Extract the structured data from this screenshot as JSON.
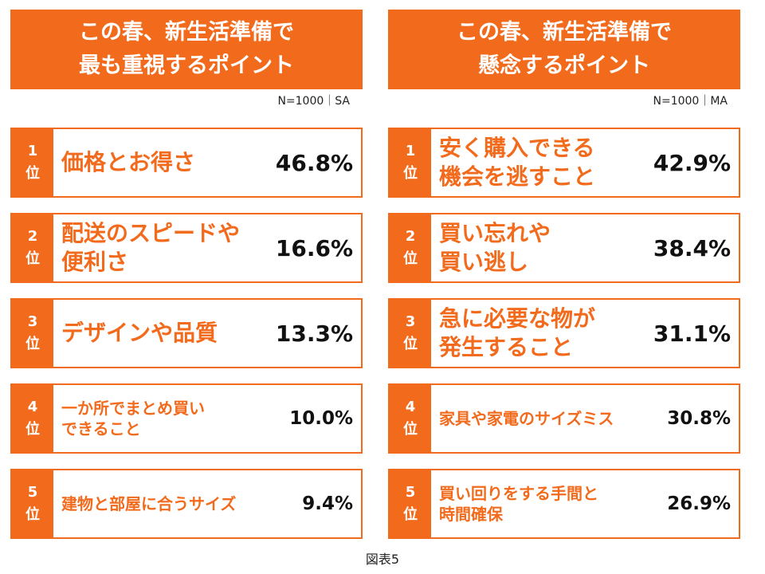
{
  "panels": [
    {
      "title": [
        "この春、新生活準備で",
        "最も重視するポイント"
      ],
      "note": "N=1000｜SA",
      "items": [
        {
          "rank": "1",
          "label": [
            "価格とお得さ"
          ],
          "value": "46.8%"
        },
        {
          "rank": "2",
          "label": [
            "配送のスピードや",
            "便利さ"
          ],
          "value": "16.6%"
        },
        {
          "rank": "3",
          "label": [
            "デザインや品質"
          ],
          "value": "13.3%"
        },
        {
          "rank": "4",
          "label": [
            "一か所でまとめ買い",
            "できること"
          ],
          "value": "10.0%"
        },
        {
          "rank": "5",
          "label": [
            "建物と部屋に合うサイズ"
          ],
          "value": "9.4%"
        }
      ]
    },
    {
      "title": [
        "この春、新生活準備で",
        "懸念するポイント"
      ],
      "note": "N=1000｜MA",
      "items": [
        {
          "rank": "1",
          "label": [
            "安く購入できる",
            "機会を逃すこと"
          ],
          "value": "42.9%"
        },
        {
          "rank": "2",
          "label": [
            "買い忘れや",
            "買い逃し"
          ],
          "value": "38.4%"
        },
        {
          "rank": "3",
          "label": [
            "急に必要な物が",
            "発生すること"
          ],
          "value": "31.1%"
        },
        {
          "rank": "4",
          "label": [
            "家具や家電のサイズミス"
          ],
          "value": "30.8%"
        },
        {
          "rank": "5",
          "label": [
            "買い回りをする手間と",
            "時間確保"
          ],
          "value": "26.9%"
        }
      ]
    }
  ],
  "rank_unit": "位",
  "caption": "図表5"
}
